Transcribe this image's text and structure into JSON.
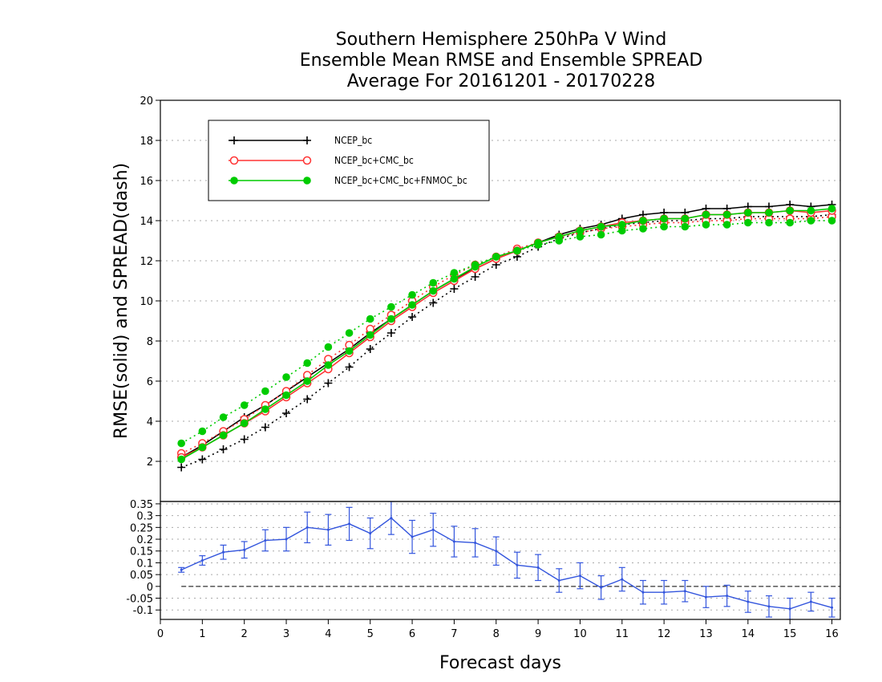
{
  "title_lines": [
    "Southern Hemisphere 250hPa V Wind",
    "Ensemble Mean RMSE and Ensemble SPREAD",
    "Average For 20161201 - 20170228"
  ],
  "chart_data": [
    {
      "type": "line",
      "panel": "upper",
      "ylabel": "RMSE(solid)  and  SPREAD(dash)",
      "xlabel": "",
      "xlim": [
        0,
        16.2
      ],
      "ylim": [
        0,
        20
      ],
      "yticks": [
        2,
        4,
        6,
        8,
        10,
        12,
        14,
        16,
        18,
        20
      ],
      "grid": true,
      "legend_position": "top-left",
      "x": [
        0.5,
        1.0,
        1.5,
        2.0,
        2.5,
        3.0,
        3.5,
        4.0,
        4.5,
        5.0,
        5.5,
        6.0,
        6.5,
        7.0,
        7.5,
        8.0,
        8.5,
        9.0,
        9.5,
        10.0,
        10.5,
        11.0,
        11.5,
        12.0,
        12.5,
        13.0,
        13.5,
        14.0,
        14.5,
        15.0,
        15.5,
        16.0
      ],
      "series": [
        {
          "name": "NCEP_bc",
          "color": "#000000",
          "marker": "plus",
          "rmse": [
            2.2,
            2.8,
            3.5,
            4.2,
            4.8,
            5.5,
            6.2,
            6.9,
            7.6,
            8.4,
            9.1,
            9.8,
            10.5,
            11.1,
            11.6,
            12.1,
            12.5,
            12.9,
            13.3,
            13.6,
            13.8,
            14.1,
            14.3,
            14.4,
            14.4,
            14.6,
            14.6,
            14.7,
            14.7,
            14.8,
            14.7,
            14.8
          ],
          "spread": [
            1.7,
            2.1,
            2.6,
            3.1,
            3.7,
            4.4,
            5.1,
            5.9,
            6.7,
            7.6,
            8.4,
            9.2,
            9.9,
            10.6,
            11.2,
            11.8,
            12.2,
            12.7,
            13.1,
            13.4,
            13.6,
            13.8,
            13.9,
            14.0,
            14.0,
            14.1,
            14.1,
            14.2,
            14.2,
            14.2,
            14.2,
            14.3
          ]
        },
        {
          "name": "NCEP_bc+CMC_bc",
          "color": "#ff3333",
          "marker": "open-circle",
          "rmse": [
            2.2,
            2.7,
            3.3,
            3.9,
            4.5,
            5.2,
            5.9,
            6.6,
            7.4,
            8.2,
            9.0,
            9.7,
            10.4,
            11.0,
            11.6,
            12.1,
            12.5,
            12.9,
            13.2,
            13.5,
            13.7,
            13.9,
            14.0,
            14.1,
            14.1,
            14.3,
            14.3,
            14.4,
            14.4,
            14.5,
            14.4,
            14.5
          ],
          "spread": [
            2.4,
            2.9,
            3.5,
            4.1,
            4.8,
            5.5,
            6.3,
            7.1,
            7.8,
            8.6,
            9.3,
            10.0,
            10.7,
            11.3,
            11.8,
            12.2,
            12.6,
            12.9,
            13.2,
            13.4,
            13.6,
            13.7,
            13.8,
            13.9,
            13.9,
            14.0,
            14.0,
            14.1,
            14.1,
            14.1,
            14.1,
            14.2
          ]
        },
        {
          "name": "NCEP_bc+CMC_bc+FNMOC_bc",
          "color": "#00cc00",
          "marker": "filled-circle",
          "rmse": [
            2.1,
            2.7,
            3.3,
            3.9,
            4.6,
            5.3,
            6.0,
            6.8,
            7.5,
            8.3,
            9.1,
            9.8,
            10.5,
            11.1,
            11.7,
            12.2,
            12.5,
            12.9,
            13.2,
            13.5,
            13.7,
            13.8,
            14.0,
            14.1,
            14.1,
            14.3,
            14.3,
            14.4,
            14.4,
            14.5,
            14.5,
            14.6
          ],
          "spread": [
            2.9,
            3.5,
            4.2,
            4.8,
            5.5,
            6.2,
            6.9,
            7.7,
            8.4,
            9.1,
            9.7,
            10.3,
            10.9,
            11.4,
            11.8,
            12.2,
            12.5,
            12.8,
            13.0,
            13.2,
            13.3,
            13.5,
            13.6,
            13.7,
            13.7,
            13.8,
            13.8,
            13.9,
            13.9,
            13.9,
            14.0,
            14.0
          ]
        }
      ]
    },
    {
      "type": "line",
      "panel": "lower",
      "xlabel": "Forecast days",
      "xlim": [
        0,
        16.2
      ],
      "ylim": [
        -0.14,
        0.36
      ],
      "yticks": [
        -0.1,
        -0.05,
        0,
        0.05,
        0.1,
        0.15,
        0.2,
        0.25,
        0.3,
        0.35
      ],
      "ytick_labels": [
        "-0.1",
        "-0.05",
        "0",
        "0.05",
        "0.1",
        "0.15",
        "0.2",
        "0.25",
        "0.3",
        "0.35"
      ],
      "xticks": [
        0,
        1,
        2,
        3,
        4,
        5,
        6,
        7,
        8,
        9,
        10,
        11,
        12,
        13,
        14,
        15,
        16
      ],
      "grid": true,
      "zero_line": true,
      "series": [
        {
          "color": "#3355dd",
          "x": [
            0.5,
            1.0,
            1.5,
            2.0,
            2.5,
            3.0,
            3.5,
            4.0,
            4.5,
            5.0,
            5.5,
            6.0,
            6.5,
            7.0,
            7.5,
            8.0,
            8.5,
            9.0,
            9.5,
            10.0,
            10.5,
            11.0,
            11.5,
            12.0,
            12.5,
            13.0,
            13.5,
            14.0,
            14.5,
            15.0,
            15.5,
            16.0
          ],
          "values": [
            0.07,
            0.11,
            0.145,
            0.155,
            0.195,
            0.2,
            0.25,
            0.24,
            0.265,
            0.225,
            0.29,
            0.21,
            0.24,
            0.19,
            0.185,
            0.15,
            0.09,
            0.08,
            0.025,
            0.045,
            -0.005,
            0.03,
            -0.025,
            -0.025,
            -0.02,
            -0.045,
            -0.04,
            -0.065,
            -0.085,
            -0.095,
            -0.065,
            -0.09
          ],
          "error": [
            0.01,
            0.02,
            0.03,
            0.035,
            0.045,
            0.05,
            0.065,
            0.065,
            0.07,
            0.065,
            0.07,
            0.07,
            0.07,
            0.065,
            0.06,
            0.06,
            0.055,
            0.055,
            0.05,
            0.055,
            0.05,
            0.05,
            0.05,
            0.05,
            0.045,
            0.045,
            0.045,
            0.045,
            0.045,
            0.045,
            0.04,
            0.04
          ]
        }
      ]
    }
  ]
}
